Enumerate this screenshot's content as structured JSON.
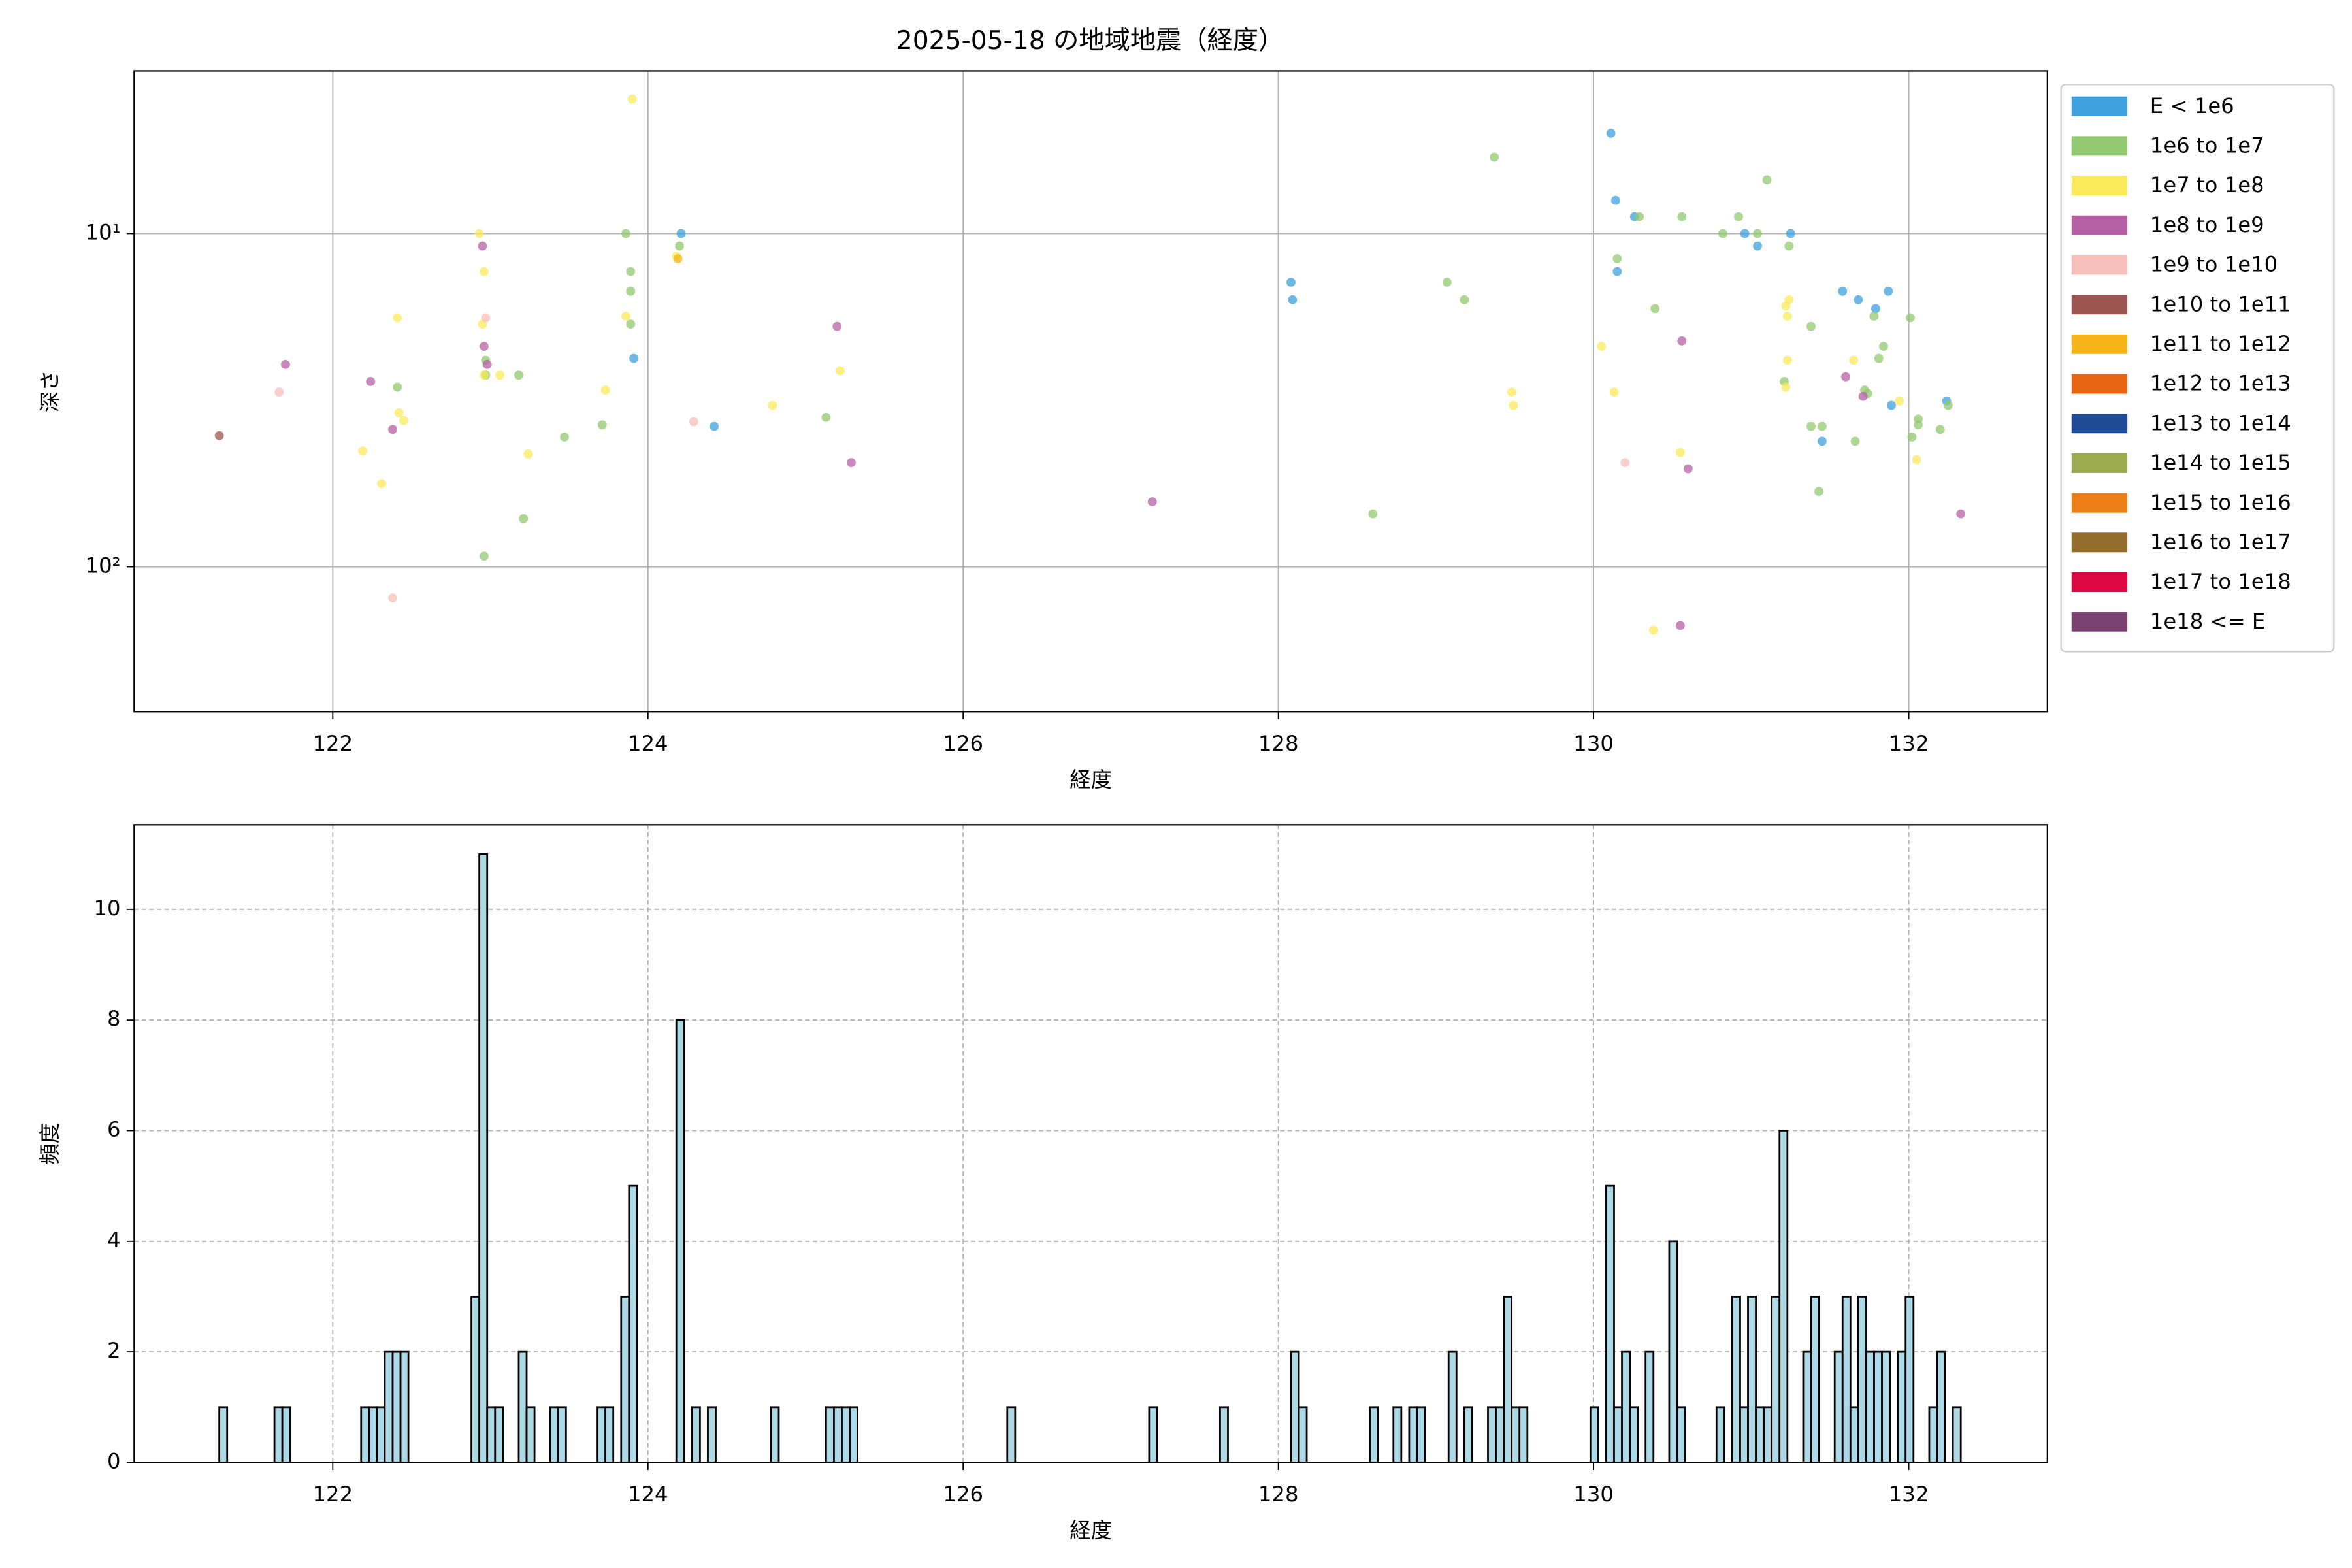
{
  "chart_data": [
    {
      "type": "scatter",
      "title": "2025-05-18 の地域地震（経度）",
      "xlabel": "経度",
      "ylabel": "深さ",
      "xlim": [
        120.74,
        132.88
      ],
      "xticks": [
        122,
        124,
        126,
        128,
        130,
        132
      ],
      "yscale": "log",
      "ylim": [
        272,
        3.25
      ],
      "yticks": [
        {
          "value": 10,
          "label": "10¹"
        },
        {
          "value": 100,
          "label": "10²"
        }
      ],
      "grid": true,
      "legend": "right",
      "series": [
        {
          "name": "E < 1e6",
          "color": "#3ea0dc",
          "x": [
            130.11,
            130.14,
            130.26,
            130.15,
            130.96,
            131.04,
            131.25,
            128.08,
            128.09,
            124.21,
            123.91,
            124.42,
            131.58,
            131.68,
            131.79,
            131.87,
            131.89,
            131.45,
            132.24
          ],
          "values": [
            5.0,
            7.95,
            8.9,
            13,
            10,
            10.9,
            10,
            14,
            15.8,
            10,
            23.7,
            37.9,
            14.9,
            15.8,
            16.8,
            14.9,
            32.8,
            42,
            31.8
          ]
        },
        {
          "name": "1e6 to 1e7",
          "color": "#92c86f",
          "x": [
            129.37,
            131.1,
            130.29,
            130.56,
            130.92,
            130.82,
            131.04,
            131.24,
            130.15,
            129.07,
            129.18,
            130.39,
            131.38,
            131.78,
            132.01,
            131.84,
            131.81,
            131.72,
            131.74,
            131.21,
            132.06,
            132.06,
            132.25,
            131.38,
            131.45,
            131.66,
            132.02,
            132.2,
            131.43,
            128.6,
            123.86,
            123.89,
            123.89,
            123.89,
            124.2,
            122.41,
            122.97,
            122.97,
            123.18,
            123.71,
            123.47,
            125.13,
            123.21,
            122.96
          ],
          "values": [
            5.9,
            6.9,
            8.9,
            8.9,
            8.9,
            10,
            10,
            10.9,
            11.9,
            14,
            15.8,
            16.8,
            19,
            17.7,
            17.9,
            21.8,
            23.7,
            29.5,
            30.2,
            27.8,
            36,
            37.5,
            32.8,
            37.9,
            37.9,
            42,
            40.8,
            38.7,
            59.4,
            69.4,
            10,
            13,
            14.9,
            18.7,
            10.9,
            28.9,
            24,
            26.6,
            26.6,
            37.5,
            40.8,
            35.6,
            71.7,
            92.9
          ]
        },
        {
          "name": "1e7 to 1e8",
          "color": "#fbea5a",
          "x": [
            123.9,
            122.93,
            122.96,
            122.95,
            123.86,
            122.41,
            122.96,
            123.06,
            123.73,
            122.42,
            122.45,
            122.19,
            123.24,
            122.31,
            124.18,
            124.79,
            125.22,
            130.05,
            130.13,
            129.48,
            129.49,
            131.22,
            131.24,
            131.23,
            131.22,
            131.23,
            131.65,
            131.94,
            132.05,
            130.55,
            130.38
          ],
          "values": [
            3.95,
            10,
            13,
            18.7,
            17.7,
            17.9,
            26.6,
            26.6,
            29.5,
            34.5,
            36.4,
            44.9,
            45.9,
            56.3,
            11.7,
            32.8,
            25.8,
            21.8,
            29.9,
            29.9,
            32.8,
            16.5,
            15.8,
            17.7,
            28.9,
            24,
            24,
            31.8,
            47.7,
            45.4,
            155
          ]
        },
        {
          "name": "1e8 to 1e9",
          "color": "#b660a6",
          "x": [
            122.95,
            122.96,
            122.98,
            121.7,
            122.24,
            122.38,
            125.2,
            125.29,
            127.2,
            130.56,
            130.6,
            131.6,
            131.71,
            132.33,
            130.55
          ],
          "values": [
            10.9,
            21.8,
            24.7,
            24.7,
            27.8,
            38.7,
            19,
            48.7,
            63.8,
            21,
            50.8,
            26.9,
            30.8,
            69.4,
            150
          ]
        },
        {
          "name": "1e9 to 1e10",
          "color": "#f6bfb9",
          "x": [
            121.66,
            122.97,
            124.29,
            122.38,
            130.2
          ],
          "values": [
            29.9,
            17.9,
            36.7,
            124,
            48.7
          ]
        },
        {
          "name": "1e10 to 1e11",
          "color": "#9a5550",
          "x": [
            121.28
          ],
          "values": [
            40.4
          ]
        },
        {
          "name": "1e11 to 1e12",
          "color": "#f5b418",
          "x": [
            124.19
          ],
          "values": [
            11.9
          ]
        },
        {
          "name": "1e12 to 1e13",
          "color": "#e96714",
          "x": [],
          "values": []
        },
        {
          "name": "1e13 to 1e14",
          "color": "#1f4b94",
          "x": [],
          "values": []
        },
        {
          "name": "1e14 to 1e15",
          "color": "#9baa4f",
          "x": [],
          "values": []
        },
        {
          "name": "1e15 to 1e16",
          "color": "#ed7d16",
          "x": [],
          "values": []
        },
        {
          "name": "1e16 to 1e17",
          "color": "#946d2c",
          "x": [],
          "values": []
        },
        {
          "name": "1e17 to 1e18",
          "color": "#dc0640",
          "x": [],
          "values": []
        },
        {
          "name": "1e18 <= E",
          "color": "#7a4070",
          "x": [],
          "values": []
        }
      ]
    },
    {
      "type": "histogram",
      "xlabel": "経度",
      "ylabel": "頻度",
      "color": "#add8e6",
      "edgecolor": "#000000",
      "xlim": [
        120.74,
        132.88
      ],
      "xticks": [
        122,
        124,
        126,
        128,
        130,
        132
      ],
      "ylim": [
        0,
        11.53
      ],
      "yticks": [
        0,
        2,
        4,
        6,
        8,
        10
      ],
      "grid": true,
      "bins": [
        121.28,
        121.33,
        121.63,
        121.68,
        121.73,
        122.18,
        122.23,
        122.28,
        122.33,
        122.38,
        122.43,
        122.48,
        122.88,
        122.93,
        122.98,
        123.03,
        123.08,
        123.18,
        123.23,
        123.28,
        123.38,
        123.43,
        123.48,
        123.68,
        123.73,
        123.78,
        123.83,
        123.88,
        123.93,
        124.18,
        124.23,
        124.28,
        124.33,
        124.38,
        124.43,
        124.78,
        124.83,
        125.13,
        125.18,
        125.23,
        125.28,
        125.33,
        126.28,
        126.33,
        127.18,
        127.23,
        127.63,
        127.68,
        128.08,
        128.13,
        128.18,
        128.58,
        128.63,
        128.73,
        128.78,
        128.83,
        128.88,
        128.93,
        129.08,
        129.13,
        129.18,
        129.23,
        129.33,
        129.38,
        129.43,
        129.48,
        129.53,
        129.58,
        129.98,
        130.03,
        130.08,
        130.13,
        130.18,
        130.23,
        130.28,
        130.33,
        130.38,
        130.48,
        130.53,
        130.58,
        130.78,
        130.83,
        130.88,
        130.93,
        130.98,
        131.03,
        131.08,
        131.13,
        131.18,
        131.23,
        131.33,
        131.38,
        131.43,
        131.53,
        131.58,
        131.63,
        131.68,
        131.73,
        131.78,
        131.83,
        131.88,
        131.93,
        131.98,
        132.03,
        132.13,
        132.18,
        132.23,
        132.28,
        132.33
      ],
      "values": [
        1,
        0,
        1,
        1,
        0,
        1,
        1,
        1,
        2,
        2,
        2,
        0,
        3,
        11,
        1,
        1,
        0,
        2,
        1,
        0,
        1,
        1,
        0,
        1,
        1,
        0,
        3,
        5,
        0,
        8,
        0,
        1,
        0,
        1,
        0,
        1,
        0,
        1,
        1,
        1,
        1,
        0,
        1,
        0,
        1,
        0,
        1,
        0,
        2,
        1,
        0,
        1,
        0,
        1,
        0,
        1,
        1,
        0,
        2,
        0,
        1,
        0,
        1,
        1,
        3,
        1,
        1,
        0,
        1,
        0,
        5,
        1,
        2,
        1,
        0,
        2,
        0,
        4,
        1,
        0,
        1,
        0,
        3,
        1,
        3,
        1,
        1,
        3,
        6,
        0,
        2,
        3,
        0,
        2,
        3,
        1,
        3,
        2,
        2,
        2,
        0,
        2,
        3,
        0,
        1,
        2,
        0,
        1
      ]
    }
  ]
}
